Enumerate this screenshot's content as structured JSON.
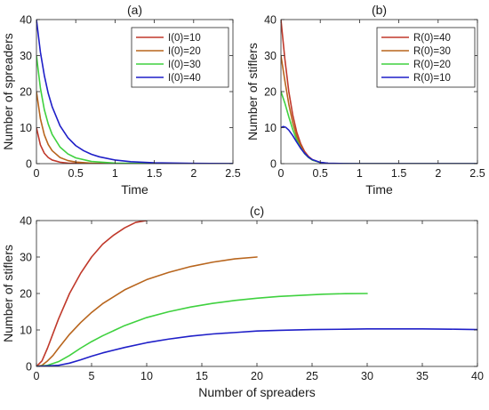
{
  "colors": {
    "red": "#c0392b",
    "brown": "#b8651d",
    "green": "#3fd13f",
    "blue": "#1f1fc8"
  },
  "chart_data": [
    {
      "panel": "(a)",
      "type": "line",
      "title": "(a)",
      "xlabel": "Time",
      "ylabel": "Number of spreaders",
      "xlim": [
        0,
        2.5
      ],
      "ylim": [
        0,
        40
      ],
      "xticks": [
        "0",
        "0.5",
        "1",
        "1.5",
        "2",
        "2.5"
      ],
      "yticks": [
        "0",
        "10",
        "20",
        "30",
        "40"
      ],
      "legend_position": "top-right",
      "grid": false,
      "series": [
        {
          "name": "I(0)=10",
          "color": "red",
          "x": [
            0,
            0.05,
            0.1,
            0.15,
            0.2,
            0.3,
            0.4,
            0.5,
            0.7,
            1.0,
            1.5,
            2.0,
            2.5
          ],
          "y": [
            10,
            5.2,
            2.9,
            1.7,
            1.0,
            0.4,
            0.15,
            0.07,
            0.01,
            0,
            0,
            0,
            0
          ]
        },
        {
          "name": "I(0)=20",
          "color": "brown",
          "x": [
            0,
            0.05,
            0.1,
            0.15,
            0.2,
            0.3,
            0.4,
            0.5,
            0.7,
            1.0,
            1.5,
            2.0,
            2.5
          ],
          "y": [
            20,
            12.5,
            8.0,
            5.3,
            3.6,
            1.7,
            0.85,
            0.45,
            0.12,
            0.02,
            0,
            0,
            0
          ]
        },
        {
          "name": "I(0)=30",
          "color": "green",
          "x": [
            0,
            0.05,
            0.1,
            0.15,
            0.2,
            0.3,
            0.4,
            0.5,
            0.7,
            1.0,
            1.5,
            2.0,
            2.5
          ],
          "y": [
            30,
            21,
            15,
            11,
            8.1,
            4.6,
            2.7,
            1.6,
            0.6,
            0.15,
            0.01,
            0,
            0
          ]
        },
        {
          "name": "I(0)=40",
          "color": "blue",
          "x": [
            0,
            0.05,
            0.1,
            0.15,
            0.2,
            0.3,
            0.4,
            0.5,
            0.6,
            0.7,
            0.8,
            1.0,
            1.2,
            1.5,
            2.0,
            2.5
          ],
          "y": [
            40,
            31,
            24.5,
            19.5,
            15.8,
            10.5,
            7.2,
            5.0,
            3.6,
            2.6,
            1.9,
            1.0,
            0.55,
            0.25,
            0.08,
            0.02
          ]
        }
      ]
    },
    {
      "panel": "(b)",
      "type": "line",
      "title": "(b)",
      "xlabel": "Time",
      "ylabel": "Number of stiflers",
      "xlim": [
        0,
        2.5
      ],
      "ylim": [
        0,
        40
      ],
      "xticks": [
        "0",
        "0.5",
        "1",
        "1.5",
        "2",
        "2.5"
      ],
      "yticks": [
        "0",
        "10",
        "20",
        "30",
        "40"
      ],
      "legend_position": "top-right",
      "grid": false,
      "series": [
        {
          "name": "R(0)=40",
          "color": "red",
          "x": [
            0,
            0.05,
            0.1,
            0.15,
            0.2,
            0.25,
            0.3,
            0.35,
            0.4,
            0.5,
            0.6,
            0.8,
            1.0,
            2.5
          ],
          "y": [
            40,
            29,
            20,
            13.5,
            8.8,
            5.6,
            3.4,
            2.0,
            1.1,
            0.3,
            0.08,
            0.01,
            0,
            0
          ]
        },
        {
          "name": "R(0)=30",
          "color": "brown",
          "x": [
            0,
            0.05,
            0.1,
            0.15,
            0.2,
            0.25,
            0.3,
            0.35,
            0.4,
            0.5,
            0.6,
            0.8,
            1.0,
            2.5
          ],
          "y": [
            30,
            23,
            16.5,
            11.4,
            7.6,
            4.9,
            3.0,
            1.8,
            1.0,
            0.3,
            0.08,
            0.01,
            0,
            0
          ]
        },
        {
          "name": "R(0)=20",
          "color": "green",
          "x": [
            0,
            0.05,
            0.1,
            0.15,
            0.2,
            0.25,
            0.3,
            0.35,
            0.4,
            0.5,
            0.6,
            0.8,
            1.0,
            2.5
          ],
          "y": [
            20,
            16.8,
            13,
            9.5,
            6.6,
            4.4,
            2.8,
            1.7,
            1.0,
            0.3,
            0.08,
            0.01,
            0,
            0
          ]
        },
        {
          "name": "R(0)=10",
          "color": "blue",
          "x": [
            0,
            0.03,
            0.06,
            0.1,
            0.15,
            0.2,
            0.25,
            0.3,
            0.35,
            0.4,
            0.5,
            0.6,
            0.8,
            1.0,
            2.5
          ],
          "y": [
            10,
            10.3,
            10.1,
            9.3,
            7.8,
            6.0,
            4.3,
            2.9,
            1.8,
            1.1,
            0.35,
            0.1,
            0.01,
            0,
            0
          ]
        }
      ]
    },
    {
      "panel": "(c)",
      "type": "line",
      "title": "(c)",
      "xlabel": "Number of spreaders",
      "ylabel": "Number of stiflers",
      "xlim": [
        0,
        40
      ],
      "ylim": [
        0,
        40
      ],
      "xticks": [
        "0",
        "5",
        "10",
        "15",
        "20",
        "25",
        "30",
        "35",
        "40"
      ],
      "yticks": [
        "0",
        "10",
        "20",
        "30",
        "40"
      ],
      "grid": false,
      "series": [
        {
          "color": "red",
          "x": [
            0,
            0.5,
            1,
            2,
            3,
            4,
            5,
            6,
            7,
            8,
            9,
            10
          ],
          "y": [
            0,
            1.5,
            5,
            13,
            20,
            25.5,
            30,
            33.5,
            36,
            38,
            39.5,
            40
          ]
        },
        {
          "color": "brown",
          "x": [
            0,
            0.5,
            1,
            1.5,
            2,
            3,
            4,
            5,
            6,
            8,
            10,
            12,
            14,
            16,
            18,
            20
          ],
          "y": [
            0,
            0.3,
            1.5,
            3,
            5,
            8.8,
            12,
            14.8,
            17.2,
            21,
            23.8,
            25.8,
            27.4,
            28.6,
            29.5,
            30
          ]
        },
        {
          "color": "green",
          "x": [
            0,
            1,
            2,
            3,
            4,
            5,
            6,
            8,
            10,
            12,
            14,
            16,
            18,
            20,
            22,
            24,
            26,
            28,
            30
          ],
          "y": [
            0,
            0.3,
            1.3,
            3,
            5,
            6.8,
            8.4,
            11.2,
            13.4,
            15,
            16.3,
            17.3,
            18.1,
            18.7,
            19.2,
            19.5,
            19.8,
            19.95,
            20
          ]
        },
        {
          "color": "blue",
          "x": [
            0,
            2,
            3,
            4,
            5,
            6,
            8,
            10,
            12,
            14,
            16,
            18,
            20,
            22,
            25,
            28,
            30,
            32,
            35,
            38,
            40
          ],
          "y": [
            0,
            0.3,
            0.9,
            1.8,
            2.8,
            3.7,
            5.2,
            6.5,
            7.5,
            8.3,
            8.9,
            9.3,
            9.7,
            9.9,
            10.1,
            10.2,
            10.3,
            10.3,
            10.3,
            10.2,
            10.1
          ]
        }
      ]
    }
  ]
}
